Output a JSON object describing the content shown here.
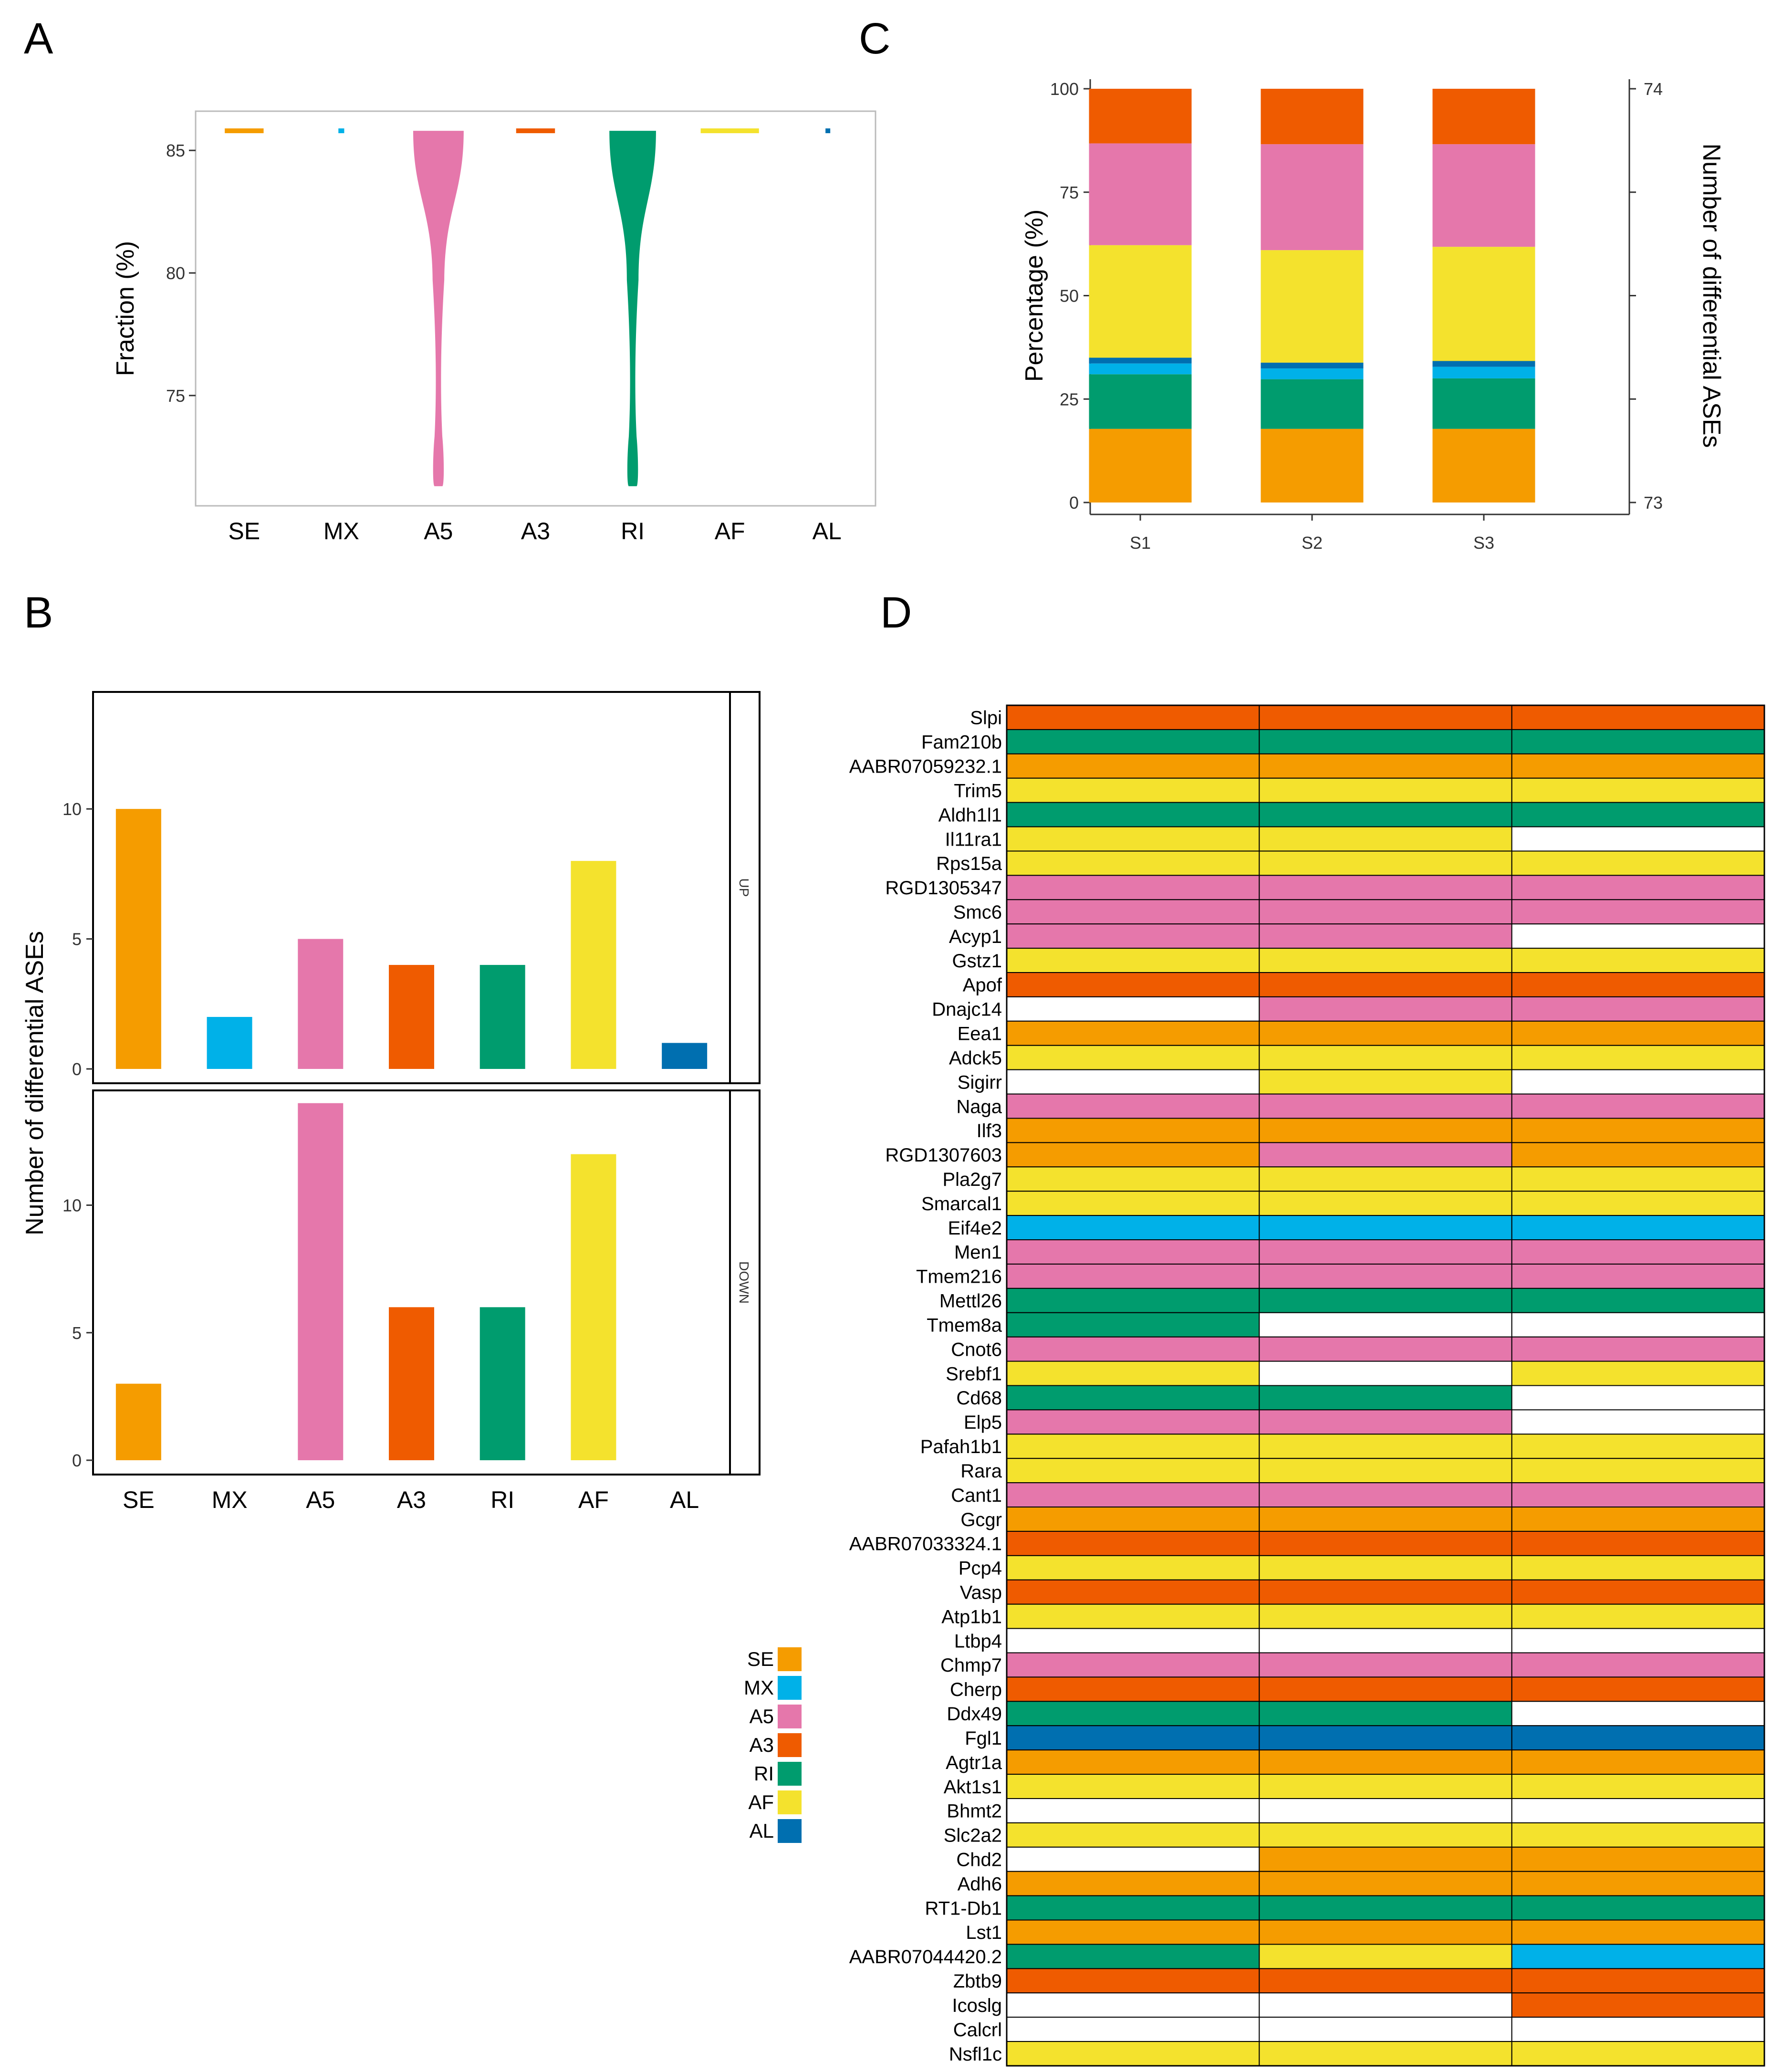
{
  "panels": {
    "a": "A",
    "b": "B",
    "c": "C",
    "d": "D"
  },
  "colors": {
    "SE": "#F59C00",
    "MX": "#00B1E8",
    "A5": "#E577AB",
    "A3": "#EF5B00",
    "RI": "#009C6E",
    "AF": "#F4E22D",
    "AL": "#006FB0",
    "NA": "#FFFFFF"
  },
  "legend": [
    "SE",
    "MX",
    "A5",
    "A3",
    "RI",
    "AF",
    "AL"
  ],
  "chart_data": [
    {
      "panel": "A",
      "type": "violin",
      "ylabel": "Fraction (%)",
      "ylim": [
        70.5,
        86.6
      ],
      "yticks": [
        75,
        80,
        85
      ],
      "categories": [
        "SE",
        "MX",
        "A5",
        "A3",
        "RI",
        "AF",
        "AL"
      ],
      "max": 85.8,
      "shape": [
        {
          "min": 85.8,
          "halfwidth_range": [
            0.2,
            0.2
          ]
        },
        {
          "min": 85.8,
          "halfwidth_range": [
            0.03,
            0.03
          ]
        },
        {
          "min": 71.3,
          "halfwidth_range": [
            0.26,
            0.02
          ]
        },
        {
          "min": 85.8,
          "halfwidth_range": [
            0.2,
            0.2
          ]
        },
        {
          "min": 71.3,
          "halfwidth_range": [
            0.24,
            0.02
          ]
        },
        {
          "min": 85.8,
          "halfwidth_range": [
            0.3,
            0.3
          ]
        },
        {
          "min": 85.8,
          "halfwidth_range": [
            0.015,
            0.015
          ]
        }
      ]
    },
    {
      "panel": "C",
      "type": "bar",
      "stacked": true,
      "ylabel": "Percentage  (%)",
      "y2label": "Number of differential ASEs",
      "ylim": [
        0,
        100
      ],
      "yticks": [
        0,
        25,
        50,
        75,
        100
      ],
      "y2ticks": [
        "73",
        "74"
      ],
      "categories": [
        "S1",
        "S2",
        "S3"
      ],
      "series": [
        {
          "name": "SE",
          "values": [
            17.8,
            17.8,
            17.8
          ]
        },
        {
          "name": "RI",
          "values": [
            13.2,
            12.0,
            12.2
          ]
        },
        {
          "name": "MX",
          "values": [
            2.6,
            2.6,
            2.8
          ]
        },
        {
          "name": "AL",
          "values": [
            1.4,
            1.4,
            1.4
          ]
        },
        {
          "name": "AF",
          "values": [
            27.2,
            27.2,
            27.6
          ]
        },
        {
          "name": "A5",
          "values": [
            24.6,
            25.6,
            24.8
          ]
        },
        {
          "name": "A3",
          "values": [
            13.2,
            13.4,
            13.4
          ]
        }
      ]
    },
    {
      "panel": "B",
      "type": "bar",
      "ylabel": "Number of differential ASEs",
      "categories": [
        "SE",
        "MX",
        "A5",
        "A3",
        "RI",
        "AF",
        "AL"
      ],
      "facets": [
        {
          "name": "UP",
          "ylim": [
            0,
            14.5
          ],
          "yticks": [
            0,
            5,
            10
          ],
          "values": [
            10,
            2,
            5,
            4,
            4,
            8,
            1
          ]
        },
        {
          "name": "DOWN",
          "ylim": [
            0,
            14.5
          ],
          "yticks": [
            0,
            5,
            10
          ],
          "values": [
            3,
            0,
            14,
            6,
            6,
            12,
            0
          ]
        }
      ]
    },
    {
      "panel": "D",
      "type": "heatmap",
      "columns": 3,
      "genes": [
        "Slpi",
        "Fam210b",
        "AABR07059232.1",
        "Trim5",
        "Aldh1l1",
        "Il11ra1",
        "Rps15a",
        "RGD1305347",
        "Smc6",
        "Acyp1",
        "Gstz1",
        "Apof",
        "Dnajc14",
        "Eea1",
        "Adck5",
        "Sigirr",
        "Naga",
        "Ilf3",
        "RGD1307603",
        "Pla2g7",
        "Smarcal1",
        "Eif4e2",
        "Men1",
        "Tmem216",
        "Mettl26",
        "Tmem8a",
        "Cnot6",
        "Srebf1",
        "Cd68",
        "Elp5",
        "Pafah1b1",
        "Rara",
        "Cant1",
        "Gcgr",
        "AABR07033324.1",
        "Pcp4",
        "Vasp",
        "Atp1b1",
        "Ltbp4",
        "Chmp7",
        "Cherp",
        "Ddx49",
        "Fgl1",
        "Agtr1a",
        "Akt1s1",
        "Bhmt2",
        "Slc2a2",
        "Chd2",
        "Adh6",
        "RT1-Db1",
        "Lst1",
        "AABR07044420.2",
        "Zbtb9",
        "Icoslg",
        "Calcrl",
        "Nsfl1c"
      ],
      "values": [
        [
          "A3",
          "A3",
          "A3"
        ],
        [
          "RI",
          "RI",
          "RI"
        ],
        [
          "SE",
          "SE",
          "SE"
        ],
        [
          "AF",
          "AF",
          "AF"
        ],
        [
          "RI",
          "RI",
          "RI"
        ],
        [
          "AF",
          "AF",
          "NA"
        ],
        [
          "AF",
          "AF",
          "AF"
        ],
        [
          "A5",
          "A5",
          "A5"
        ],
        [
          "A5",
          "A5",
          "A5"
        ],
        [
          "A5",
          "A5",
          "NA"
        ],
        [
          "AF",
          "AF",
          "AF"
        ],
        [
          "A3",
          "A3",
          "A3"
        ],
        [
          "NA",
          "A5",
          "A5"
        ],
        [
          "SE",
          "SE",
          "SE"
        ],
        [
          "AF",
          "AF",
          "AF"
        ],
        [
          "NA",
          "AF",
          "NA"
        ],
        [
          "A5",
          "A5",
          "A5"
        ],
        [
          "SE",
          "SE",
          "SE"
        ],
        [
          "SE",
          "A5",
          "SE"
        ],
        [
          "AF",
          "AF",
          "AF"
        ],
        [
          "AF",
          "AF",
          "AF"
        ],
        [
          "MX",
          "MX",
          "MX"
        ],
        [
          "A5",
          "A5",
          "A5"
        ],
        [
          "A5",
          "A5",
          "A5"
        ],
        [
          "RI",
          "RI",
          "RI"
        ],
        [
          "RI",
          "NA",
          "NA"
        ],
        [
          "A5",
          "A5",
          "A5"
        ],
        [
          "AF",
          "NA",
          "AF"
        ],
        [
          "RI",
          "RI",
          "NA"
        ],
        [
          "A5",
          "A5",
          "NA"
        ],
        [
          "AF",
          "AF",
          "AF"
        ],
        [
          "AF",
          "AF",
          "AF"
        ],
        [
          "A5",
          "A5",
          "A5"
        ],
        [
          "SE",
          "SE",
          "SE"
        ],
        [
          "A3",
          "A3",
          "A3"
        ],
        [
          "AF",
          "AF",
          "AF"
        ],
        [
          "A3",
          "A3",
          "A3"
        ],
        [
          "AF",
          "AF",
          "AF"
        ],
        [
          "NA",
          "NA",
          "NA"
        ],
        [
          "A5",
          "A5",
          "A5"
        ],
        [
          "A3",
          "A3",
          "A3"
        ],
        [
          "RI",
          "RI",
          "NA"
        ],
        [
          "AL",
          "AL",
          "AL"
        ],
        [
          "SE",
          "SE",
          "SE"
        ],
        [
          "AF",
          "AF",
          "AF"
        ],
        [
          "NA",
          "NA",
          "NA"
        ],
        [
          "AF",
          "AF",
          "AF"
        ],
        [
          "NA",
          "SE",
          "SE"
        ],
        [
          "SE",
          "SE",
          "SE"
        ],
        [
          "RI",
          "RI",
          "RI"
        ],
        [
          "SE",
          "SE",
          "SE"
        ],
        [
          "RI",
          "AF",
          "MX"
        ],
        [
          "A3",
          "A3",
          "A3"
        ],
        [
          "NA",
          "NA",
          "A3"
        ],
        [
          "NA",
          "NA",
          "NA"
        ],
        [
          "AF",
          "AF",
          "AF"
        ]
      ]
    }
  ]
}
